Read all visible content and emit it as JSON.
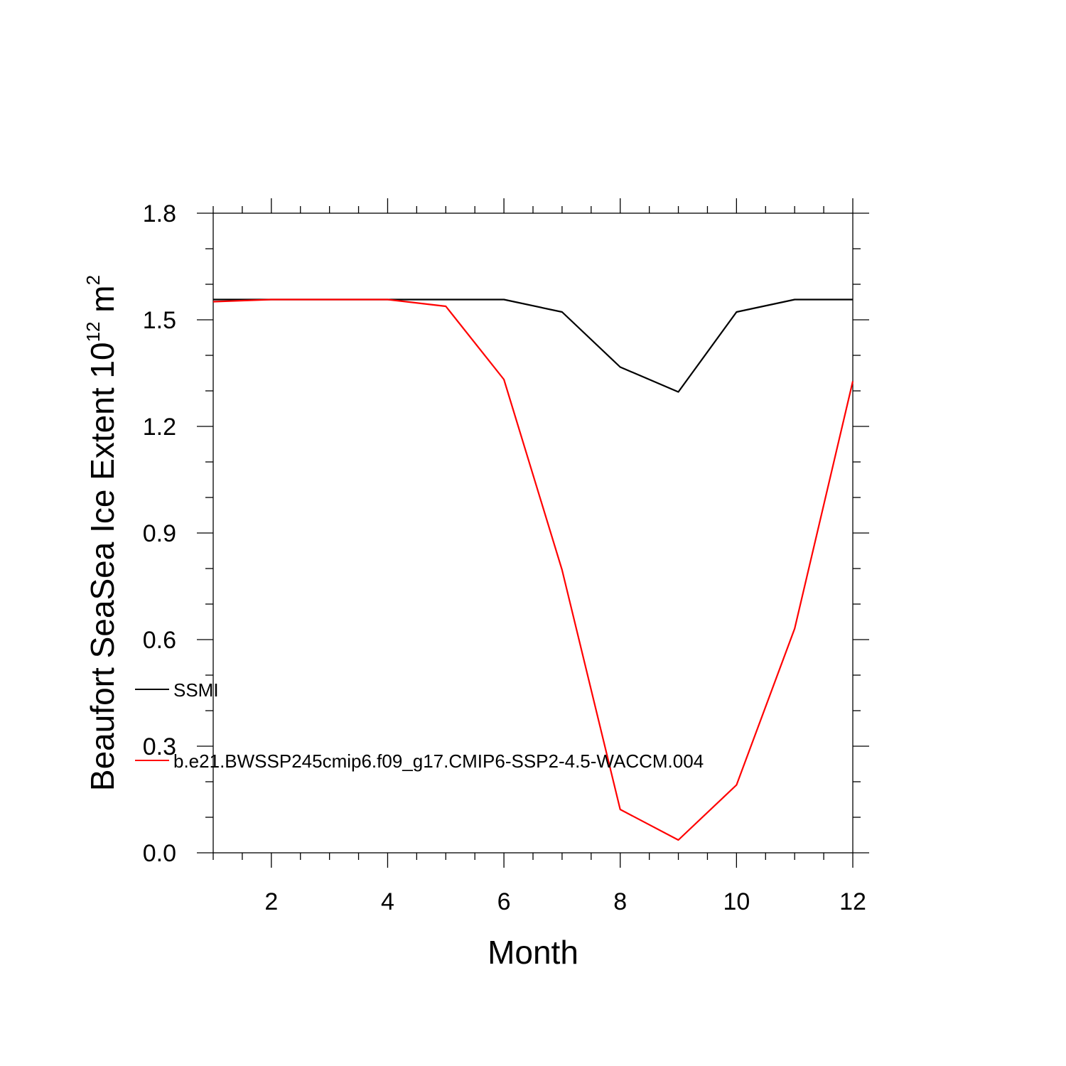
{
  "chart_data": {
    "type": "line",
    "xlabel": "Month",
    "ylabel": {
      "main": "Beaufort SeaSea Ice Extent 10",
      "sup": "12",
      "unit": " m",
      "unit_sup": "2"
    },
    "xlim": [
      1,
      12
    ],
    "ylim": [
      0.0,
      1.8
    ],
    "xticks": [
      2,
      4,
      6,
      8,
      10,
      12
    ],
    "xtick_labels": [
      "2",
      "4",
      "6",
      "8",
      "10",
      "12"
    ],
    "yticks": [
      0.0,
      0.3,
      0.6,
      0.9,
      1.2,
      1.5,
      1.8
    ],
    "ytick_labels": [
      "0.0",
      "0.3",
      "0.6",
      "0.9",
      "1.2",
      "1.5",
      "1.8"
    ],
    "grid": false,
    "legend_position": "lower-left",
    "x": [
      1,
      2,
      3,
      4,
      5,
      6,
      7,
      8,
      9,
      10,
      11,
      12
    ],
    "series": [
      {
        "name": "SSMI",
        "color": "#000000",
        "values": [
          1.557,
          1.557,
          1.557,
          1.557,
          1.557,
          1.557,
          1.522,
          1.367,
          1.297,
          1.522,
          1.557,
          1.557
        ]
      },
      {
        "name": "b.e21.BWSSP245cmip6.f09_g17.CMIP6-SSP2-4.5-WACCM.004",
        "color": "#ff0000",
        "values": [
          1.551,
          1.557,
          1.557,
          1.557,
          1.538,
          1.332,
          0.796,
          0.122,
          0.036,
          0.191,
          0.631,
          1.327
        ]
      }
    ]
  }
}
